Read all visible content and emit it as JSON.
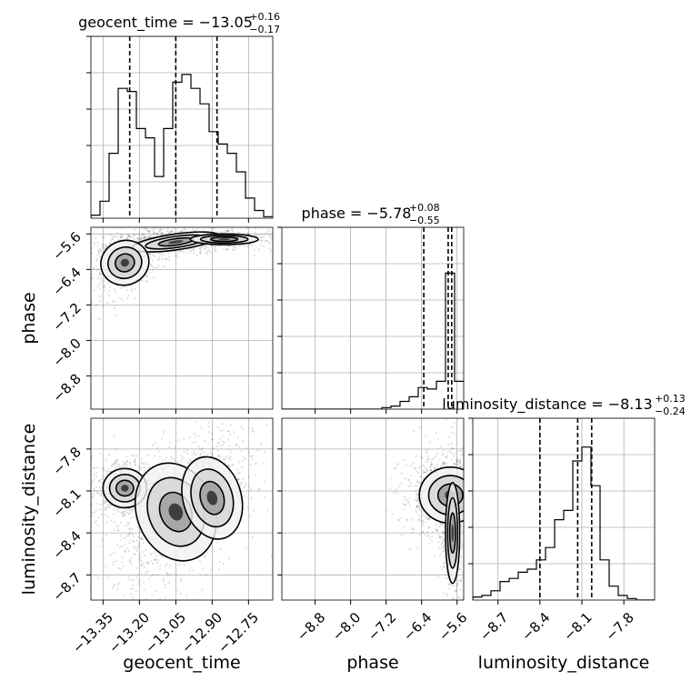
{
  "chart_data": {
    "type": "corner",
    "parameters": [
      "geocent_time",
      "phase",
      "luminosity_distance"
    ],
    "titles": [
      {
        "param": "geocent_time",
        "text": "geocent_time = −13.05",
        "plus": "+0.16",
        "minus": "−0.17"
      },
      {
        "param": "phase",
        "text": "phase = −5.78",
        "plus": "+0.08",
        "minus": "−0.55"
      },
      {
        "param": "luminosity_distance",
        "text": "luminosity_distance = −8.13",
        "plus": "+0.13",
        "minus": "−0.24"
      }
    ],
    "axis_ranges": {
      "geocent_time": [
        -13.4,
        -12.65
      ],
      "phase": [
        -9.55,
        -5.45
      ],
      "luminosity_distance": [
        -8.88,
        -7.58
      ]
    },
    "ticks": {
      "geocent_time": [
        -13.35,
        -13.2,
        -13.05,
        -12.9,
        -12.75
      ],
      "phase": [
        -8.8,
        -8.0,
        -7.2,
        -6.4,
        -5.6
      ],
      "luminosity_distance": [
        -8.7,
        -8.4,
        -8.1,
        -7.8
      ]
    },
    "tick_labels": {
      "geocent_time": [
        "−13.35",
        "−13.20",
        "−13.05",
        "−12.90",
        "−12.75"
      ],
      "phase": [
        "−8.8",
        "−8.0",
        "−7.2",
        "−6.4",
        "−5.6"
      ],
      "luminosity_distance": [
        "−8.7",
        "−8.4",
        "−8.1",
        "−7.8"
      ]
    },
    "quantiles": {
      "geocent_time": [
        -13.24,
        -13.05,
        -12.88
      ],
      "phase": [
        -6.35,
        -5.8,
        -5.72
      ],
      "luminosity_distance": [
        -8.4,
        -8.13,
        -8.03
      ]
    },
    "histograms": {
      "geocent_time": {
        "edges_start": -13.4,
        "bin_width": 0.0375,
        "counts": [
          0.02,
          0.11,
          0.42,
          0.84,
          0.82,
          0.58,
          0.52,
          0.27,
          0.58,
          0.88,
          0.93,
          0.84,
          0.74,
          0.56,
          0.48,
          0.42,
          0.3,
          0.13,
          0.05,
          0.01
        ],
        "ymax": 1.0
      },
      "phase": {
        "edges_start": -9.55,
        "bin_width": 0.205,
        "counts": [
          0,
          0,
          0,
          0,
          0,
          0,
          0,
          0,
          0,
          0,
          0,
          0.01,
          0.02,
          0.05,
          0.08,
          0.14,
          0.13,
          0.18,
          0.88,
          0.18
        ],
        "ymax": 1.0
      },
      "luminosity_distance": {
        "edges_start": -8.88,
        "bin_width": 0.065,
        "counts": [
          0.02,
          0.03,
          0.06,
          0.12,
          0.14,
          0.18,
          0.2,
          0.26,
          0.34,
          0.52,
          0.58,
          0.9,
          0.99,
          0.74,
          0.26,
          0.09,
          0.03,
          0.01,
          0,
          0
        ],
        "ymax": 1.0
      }
    },
    "grid": true,
    "xlabels": [
      "geocent_time",
      "phase",
      "luminosity_distance"
    ],
    "ylabels": [
      "phase",
      "luminosity_distance"
    ]
  }
}
